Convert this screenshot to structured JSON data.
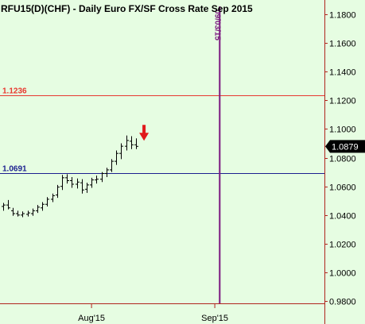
{
  "title": "RFU15(D)(CHF) - Daily  Euro FX/SF Cross Rate  Sep 2015",
  "colors": {
    "background": "#e6fde2",
    "resistance": "#e8382f",
    "support": "#1b1f8f",
    "event_line": "#7a187f",
    "arrow": "#e0191b",
    "bars": "#000000"
  },
  "chart_data": {
    "type": "ohlc",
    "ylim": [
      0.964,
      1.19
    ],
    "y_ticks": [
      "1.1800",
      "1.1600",
      "1.1400",
      "1.1200",
      "1.1000",
      "1.0800",
      "1.0600",
      "1.0400",
      "1.0200",
      "1.0000",
      "0.9800"
    ],
    "x_labels": [
      {
        "label": "Aug'15",
        "index": 18
      },
      {
        "label": "Sep'15",
        "index": 43
      }
    ],
    "last_price": "1.0879",
    "horizontal_lines": [
      {
        "label": "1.1236",
        "value": 1.1236,
        "role": "resistance"
      },
      {
        "label": "1.0691",
        "value": 1.0691,
        "role": "support"
      }
    ],
    "vertical_marker": {
      "label": "09/03/15",
      "index": 44
    },
    "signal_arrow": {
      "direction": "down",
      "index": 28,
      "value": 1.094
    },
    "bars": [
      {
        "i": 0,
        "open": 1.046,
        "high": 1.0485,
        "low": 1.043,
        "close": 1.047
      },
      {
        "i": 1,
        "open": 1.047,
        "high": 1.0505,
        "low": 1.044,
        "close": 1.045
      },
      {
        "i": 2,
        "open": 1.043,
        "high": 1.045,
        "low": 1.0395,
        "close": 1.041
      },
      {
        "i": 3,
        "open": 1.041,
        "high": 1.043,
        "low": 1.039,
        "close": 1.04
      },
      {
        "i": 4,
        "open": 1.04,
        "high": 1.0425,
        "low": 1.0385,
        "close": 1.041
      },
      {
        "i": 5,
        "open": 1.0405,
        "high": 1.043,
        "low": 1.039,
        "close": 1.0415
      },
      {
        "i": 6,
        "open": 1.041,
        "high": 1.0445,
        "low": 1.0395,
        "close": 1.043
      },
      {
        "i": 7,
        "open": 1.043,
        "high": 1.047,
        "low": 1.0415,
        "close": 1.0455
      },
      {
        "i": 8,
        "open": 1.045,
        "high": 1.049,
        "low": 1.043,
        "close": 1.0475
      },
      {
        "i": 9,
        "open": 1.0475,
        "high": 1.0525,
        "low": 1.046,
        "close": 1.051
      },
      {
        "i": 10,
        "open": 1.051,
        "high": 1.055,
        "low": 1.049,
        "close": 1.0535
      },
      {
        "i": 11,
        "open": 1.054,
        "high": 1.061,
        "low": 1.052,
        "close": 1.0595
      },
      {
        "i": 12,
        "open": 1.06,
        "high": 1.068,
        "low": 1.0575,
        "close": 1.066
      },
      {
        "i": 13,
        "open": 1.066,
        "high": 1.0685,
        "low": 1.062,
        "close": 1.064
      },
      {
        "i": 14,
        "open": 1.064,
        "high": 1.0665,
        "low": 1.059,
        "close": 1.0615
      },
      {
        "i": 15,
        "open": 1.0615,
        "high": 1.0655,
        "low": 1.0585,
        "close": 1.063
      },
      {
        "i": 16,
        "open": 1.0625,
        "high": 1.065,
        "low": 1.055,
        "close": 1.0575
      },
      {
        "i": 17,
        "open": 1.058,
        "high": 1.0625,
        "low": 1.0555,
        "close": 1.061
      },
      {
        "i": 18,
        "open": 1.061,
        "high": 1.066,
        "low": 1.059,
        "close": 1.0645
      },
      {
        "i": 19,
        "open": 1.0645,
        "high": 1.0675,
        "low": 1.062,
        "close": 1.065
      },
      {
        "i": 20,
        "open": 1.065,
        "high": 1.07,
        "low": 1.063,
        "close": 1.069
      },
      {
        "i": 21,
        "open": 1.069,
        "high": 1.073,
        "low": 1.0665,
        "close": 1.0715
      },
      {
        "i": 22,
        "open": 1.0715,
        "high": 1.079,
        "low": 1.07,
        "close": 1.0775
      },
      {
        "i": 23,
        "open": 1.0775,
        "high": 1.085,
        "low": 1.075,
        "close": 1.083
      },
      {
        "i": 24,
        "open": 1.083,
        "high": 1.09,
        "low": 1.079,
        "close": 1.088
      },
      {
        "i": 25,
        "open": 1.088,
        "high": 1.0955,
        "low": 1.085,
        "close": 1.092
      },
      {
        "i": 26,
        "open": 1.0915,
        "high": 1.095,
        "low": 1.086,
        "close": 1.089
      },
      {
        "i": 27,
        "open": 1.089,
        "high": 1.0935,
        "low": 1.086,
        "close": 1.0879
      }
    ]
  }
}
